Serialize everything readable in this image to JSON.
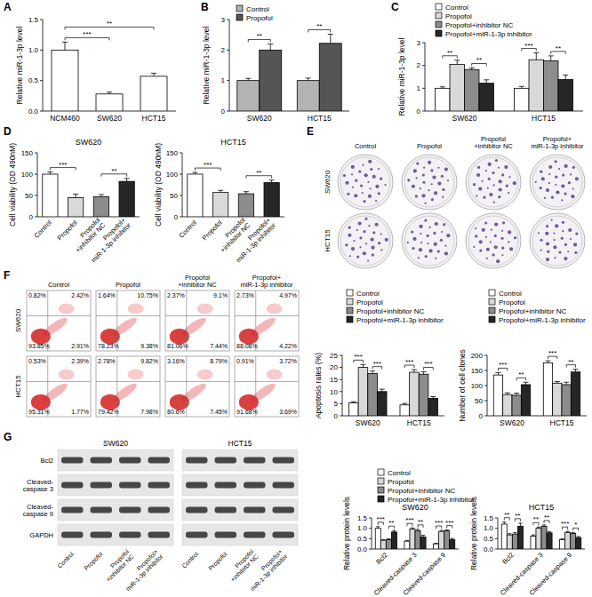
{
  "panel_labels": [
    "A",
    "B",
    "C",
    "D",
    "E",
    "F",
    "G"
  ],
  "chart_data": [
    {
      "type": "bar",
      "y_label": "Relative miR-1-3p level",
      "categories": [
        "NCM460",
        "SW620",
        "HCT15"
      ],
      "series": [
        {
          "color": "#ffffff",
          "values": [
            1.0,
            0.28,
            0.57
          ],
          "errors": [
            0.13,
            0.03,
            0.05
          ]
        }
      ],
      "ylim": [
        0,
        1.5
      ],
      "yticks": [
        {
          "value": 0,
          "label": "0.0"
        },
        0.5,
        {
          "value": 1,
          "label": "1.0"
        },
        1.5
      ],
      "annotations": [
        {
          "text": "***",
          "categories": [
            0,
            1
          ]
        },
        {
          "text": "**",
          "categories": [
            0,
            2
          ]
        }
      ]
    },
    {
      "type": "bar",
      "y_label": "Relative miR-1-3p level",
      "categories": [
        "SW620",
        "HCT15"
      ],
      "series": [
        {
          "name": "Control",
          "color": "#b3b3b3",
          "values": [
            1.0,
            1.0
          ],
          "errors": [
            0.07,
            0.08
          ]
        },
        {
          "name": "Propofol",
          "color": "#555555",
          "values": [
            2.0,
            2.22
          ],
          "errors": [
            0.2,
            0.3
          ]
        }
      ],
      "ylim": [
        0,
        3
      ],
      "yticks": [
        0,
        1,
        2,
        3
      ],
      "legend": "upper left",
      "annotations": [
        {
          "text": "**",
          "category": 0,
          "series": [
            0,
            1
          ]
        },
        {
          "text": "**",
          "category": 1,
          "series": [
            0,
            1
          ]
        }
      ]
    },
    {
      "type": "bar",
      "y_label": "Relative miR-1-3p level",
      "categories": [
        "SW620",
        "HCT15"
      ],
      "series": [
        {
          "name": "Control",
          "color": "#ffffff",
          "values": [
            1.0,
            1.0
          ],
          "errors": [
            0.06,
            0.08
          ]
        },
        {
          "name": "Propofol",
          "color": "#d9d9d9",
          "values": [
            2.05,
            2.25
          ],
          "errors": [
            0.18,
            0.3
          ]
        },
        {
          "name": "Propofol+inhibitor NC",
          "color": "#8c8c8c",
          "values": [
            1.82,
            2.2
          ],
          "errors": [
            0.07,
            0.22
          ]
        },
        {
          "name": "Propofol+miR-1-3p inhibitor",
          "color": "#262626",
          "values": [
            1.22,
            1.38
          ],
          "errors": [
            0.15,
            0.2
          ]
        }
      ],
      "ylim": [
        0,
        3
      ],
      "yticks": [
        0,
        1,
        2,
        3
      ],
      "legend": "top",
      "annotations": [
        {
          "text": "**",
          "category": 0,
          "series": [
            0,
            1
          ]
        },
        {
          "text": "**",
          "category": 0,
          "series": [
            2,
            3
          ]
        },
        {
          "text": "***",
          "category": 1,
          "series": [
            0,
            1
          ]
        },
        {
          "text": "**",
          "category": 1,
          "series": [
            2,
            3
          ]
        }
      ]
    },
    {
      "type": "bar",
      "title": "SW620",
      "y_label": "Cell viability (OD 490nM)",
      "categories": [
        "Control",
        "Propofol",
        "Propofol\n+inhibitor NC",
        "Propofol+\nmiR-1-3p inhibitor"
      ],
      "series": [
        {
          "colors": [
            "#ffffff",
            "#d9d9d9",
            "#8c8c8c",
            "#262626"
          ],
          "values": [
            100,
            45,
            47,
            83
          ],
          "errors": [
            5,
            8,
            5,
            7
          ]
        }
      ],
      "ylim": [
        0,
        150
      ],
      "yticks": [
        0,
        50,
        100,
        150
      ],
      "annotations": [
        {
          "text": "***",
          "categories": [
            0,
            1
          ]
        },
        {
          "text": "**",
          "categories": [
            2,
            3
          ]
        }
      ]
    },
    {
      "type": "bar",
      "title": "HCT15",
      "y_label": "Cell viability (OD 490nM)",
      "categories": [
        "Control",
        "Propofol",
        "Propofol\n+inhibitor NC",
        "Propofol+\nmiR-1-3p inhibitor"
      ],
      "series": [
        {
          "colors": [
            "#ffffff",
            "#d9d9d9",
            "#8c8c8c",
            "#262626"
          ],
          "values": [
            100,
            57,
            54,
            80
          ],
          "errors": [
            4,
            5,
            5,
            6
          ]
        }
      ],
      "ylim": [
        0,
        150
      ],
      "yticks": [
        0,
        50,
        100,
        150
      ],
      "annotations": [
        {
          "text": "***",
          "categories": [
            0,
            1
          ]
        },
        {
          "text": "**",
          "categories": [
            2,
            3
          ]
        }
      ]
    },
    {
      "type": "bar",
      "y_label": "Apoptosis rates (%)",
      "categories": [
        "SW620",
        "HCT15"
      ],
      "series": [
        {
          "name": "Control",
          "color": "#ffffff",
          "values": [
            5.3,
            4.5
          ],
          "errors": [
            0.5,
            0.6
          ]
        },
        {
          "name": "Propofol",
          "color": "#d9d9d9",
          "values": [
            20,
            18
          ],
          "errors": [
            1.2,
            1.1
          ]
        },
        {
          "name": "Propofol+inhibitor NC",
          "color": "#8c8c8c",
          "values": [
            17.5,
            17.2
          ],
          "errors": [
            1.0,
            1.0
          ]
        },
        {
          "name": "Propofol+miR-1-3p inhibitor",
          "color": "#262626",
          "values": [
            10,
            7.2
          ],
          "errors": [
            1.0,
            0.7
          ]
        }
      ],
      "ylim": [
        0,
        25
      ],
      "yticks": [
        0,
        5,
        10,
        15,
        20,
        25
      ],
      "legend": "top",
      "annotations": [
        {
          "text": "***",
          "category": 0,
          "series": [
            0,
            1
          ]
        },
        {
          "text": "***",
          "category": 0,
          "series": [
            2,
            3
          ]
        },
        {
          "text": "***",
          "category": 1,
          "series": [
            0,
            1
          ]
        },
        {
          "text": "***",
          "category": 1,
          "series": [
            2,
            3
          ]
        }
      ]
    },
    {
      "type": "bar",
      "y_label": "Number of cell clones",
      "categories": [
        "SW620",
        "HCT15"
      ],
      "series": [
        {
          "name": "Control",
          "color": "#ffffff",
          "values": [
            135,
            175
          ],
          "errors": [
            8,
            7
          ]
        },
        {
          "name": "Propofol",
          "color": "#d9d9d9",
          "values": [
            70,
            108
          ],
          "errors": [
            6,
            5
          ]
        },
        {
          "name": "Propofol+inhibitor NC",
          "color": "#8c8c8c",
          "values": [
            68,
            103
          ],
          "errors": [
            7,
            8
          ]
        },
        {
          "name": "Propofol+miR-1-3p inhibitor",
          "color": "#262626",
          "values": [
            103,
            145
          ],
          "errors": [
            8,
            9
          ]
        }
      ],
      "ylim": [
        0,
        200
      ],
      "yticks": [
        0,
        50,
        100,
        150,
        200
      ],
      "legend": "top",
      "annotations": [
        {
          "text": "***",
          "category": 0,
          "series": [
            0,
            1
          ]
        },
        {
          "text": "**",
          "category": 0,
          "series": [
            2,
            3
          ]
        },
        {
          "text": "***",
          "category": 1,
          "series": [
            0,
            1
          ]
        },
        {
          "text": "**",
          "category": 1,
          "series": [
            2,
            3
          ]
        }
      ]
    },
    {
      "type": "bar",
      "title": "SW620",
      "y_label": "Relative protein levels",
      "categories": [
        "Bcl2",
        "Cleaved-caspase 3",
        "Cleaved-caspase 9"
      ],
      "series": [
        {
          "name": "Control",
          "color": "#ffffff",
          "values": [
            1.0,
            0.38,
            0.25
          ],
          "errors": [
            0.08,
            0.03,
            0.03
          ]
        },
        {
          "name": "Propofol",
          "color": "#d9d9d9",
          "values": [
            0.42,
            0.97,
            0.85
          ],
          "errors": [
            0.04,
            0.05,
            0.05
          ]
        },
        {
          "name": "Propofol+inhibitor NC",
          "color": "#8c8c8c",
          "values": [
            0.45,
            0.88,
            0.88
          ],
          "errors": [
            0.04,
            0.07,
            0.04
          ]
        },
        {
          "name": "Propofol+miR-1-3p inhibitor",
          "color": "#262626",
          "values": [
            0.82,
            0.58,
            0.45
          ],
          "errors": [
            0.07,
            0.08,
            0.06
          ]
        }
      ],
      "ylim": [
        0,
        1.5
      ],
      "yticks": [
        {
          "value": 0,
          "label": "0.0"
        },
        0.5,
        {
          "value": 1,
          "label": "1.0"
        },
        1.5
      ],
      "legend": "top",
      "annotations": [
        {
          "text": "***",
          "category": 0,
          "series": [
            0,
            1
          ]
        },
        {
          "text": "**",
          "category": 0,
          "series": [
            2,
            3
          ]
        },
        {
          "text": "***",
          "category": 1,
          "series": [
            0,
            1
          ]
        },
        {
          "text": "**",
          "category": 1,
          "series": [
            2,
            3
          ]
        },
        {
          "text": "***",
          "category": 2,
          "series": [
            0,
            1
          ]
        },
        {
          "text": "***",
          "category": 2,
          "series": [
            2,
            3
          ]
        }
      ]
    },
    {
      "type": "bar",
      "title": "HCT15",
      "y_label": "Relative protein levels",
      "categories": [
        "Bcl2",
        "Cleaved-caspase 3",
        "Cleaved-caspase 9"
      ],
      "series": [
        {
          "color": "#ffffff",
          "values": [
            1.2,
            0.62,
            0.45
          ],
          "errors": [
            0.1,
            0.06,
            0.05
          ]
        },
        {
          "color": "#d9d9d9",
          "values": [
            0.68,
            1.0,
            0.8
          ],
          "errors": [
            0.06,
            0.06,
            0.05
          ]
        },
        {
          "color": "#8c8c8c",
          "values": [
            0.72,
            1.1,
            0.75
          ],
          "errors": [
            0.08,
            0.06,
            0.05
          ]
        },
        {
          "color": "#262626",
          "values": [
            1.1,
            0.78,
            0.55
          ],
          "errors": [
            0.15,
            0.06,
            0.05
          ]
        }
      ],
      "ylim": [
        0,
        1.5
      ],
      "yticks": [
        {
          "value": 0,
          "label": "0.0"
        },
        0.5,
        {
          "value": 1,
          "label": "1.0"
        },
        1.5
      ],
      "annotations": [
        {
          "text": "**",
          "category": 0,
          "series": [
            0,
            1
          ]
        },
        {
          "text": "**",
          "category": 0,
          "series": [
            2,
            3
          ]
        },
        {
          "text": "**",
          "category": 1,
          "series": [
            0,
            1
          ]
        },
        {
          "text": "**",
          "category": 1,
          "series": [
            2,
            3
          ]
        },
        {
          "text": "***",
          "category": 2,
          "series": [
            0,
            1
          ]
        },
        {
          "text": "*",
          "category": 2,
          "series": [
            2,
            3
          ]
        }
      ]
    }
  ],
  "colony_images": {
    "columns": [
      "Control",
      "Propofol",
      "Propofol\n+inhibitor NC",
      "Propofol+\nmiR-1-3p inhibitor"
    ],
    "rows": [
      "SW620",
      "HCT15"
    ]
  },
  "flow_cytometry": {
    "columns": [
      "Control",
      "Propofol",
      "Propofol\n+inhibitor NC",
      "Propofol+\nmiR-1-3p inhibitor"
    ],
    "rows": [
      "SW620",
      "HCT15"
    ],
    "quadrants": [
      [
        [
          "0.82%",
          "2.42%",
          "93.85%",
          "2.91%"
        ],
        [
          "1.64%",
          "10.75%",
          "78.23%",
          "9.38%"
        ],
        [
          "2.37%",
          "9.1%",
          "81.06%",
          "7.44%"
        ],
        [
          "2.73%",
          "4.97%",
          "88.08%",
          "4.22%"
        ]
      ],
      [
        [
          "0.53%",
          "2.39%",
          "95.31%",
          "1.77%"
        ],
        [
          "2.78%",
          "9.82%",
          "79.42%",
          "7.98%"
        ],
        [
          "3.16%",
          "8.79%",
          "80.6%",
          "7.45%"
        ],
        [
          "0.91%",
          "3.72%",
          "91.68%",
          "3.69%"
        ]
      ]
    ]
  },
  "western_blot": {
    "cell_lines": [
      "SW620",
      "HCT15"
    ],
    "proteins": [
      "Bcl2",
      "Cleaved-\ncaspase 3",
      "Cleaved-\ncaspase 9",
      "GAPDH"
    ],
    "lanes": [
      "Control",
      "Propofol",
      "Propofol\n+inhibitor NC",
      "Propofol+\nmiR-1-3p inhibitor"
    ]
  }
}
